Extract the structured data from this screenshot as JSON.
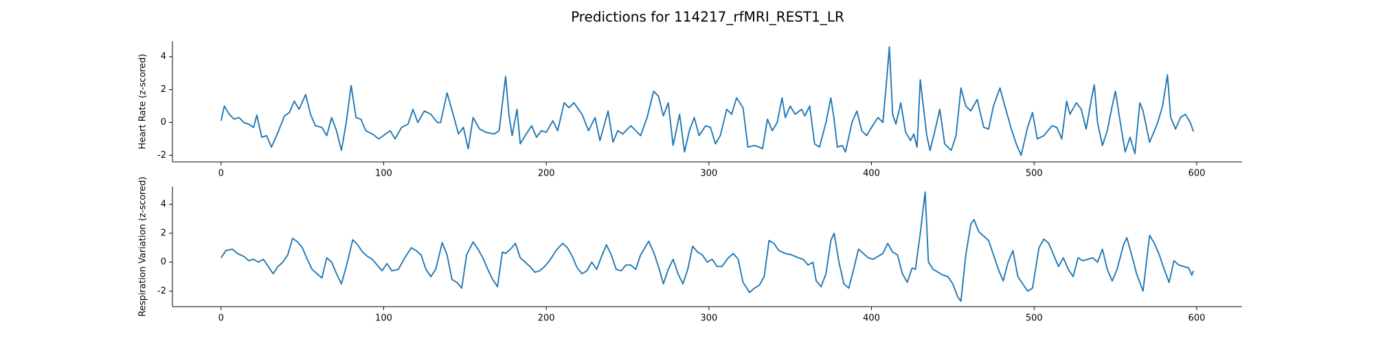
{
  "title": "Predictions for 114217_rfMRI_REST1_LR",
  "chart_data": [
    {
      "type": "line",
      "ylabel": "Heart Rate (z-scored)",
      "color": "#1f77b4",
      "xlim": [
        -29.9,
        627.9
      ],
      "ylim": [
        -2.4,
        4.95
      ],
      "xticks": [
        0,
        100,
        200,
        300,
        400,
        500,
        600
      ],
      "yticks": [
        -2,
        0,
        2,
        4
      ],
      "x": [
        0,
        2,
        5,
        8,
        11,
        14,
        17,
        20,
        22,
        25,
        28,
        31,
        35,
        39,
        42,
        45,
        48,
        52,
        55,
        58,
        62,
        65,
        68,
        71,
        74,
        77,
        80,
        83,
        86,
        89,
        93,
        97,
        104,
        107,
        111,
        115,
        118,
        121,
        125,
        129,
        133,
        135,
        139,
        143,
        146,
        149,
        152,
        155,
        159,
        163,
        168,
        171,
        175,
        177,
        179,
        182,
        184,
        187,
        191,
        194,
        197,
        200,
        204,
        207,
        211,
        214,
        217,
        222,
        226,
        230,
        233,
        238,
        241,
        244,
        247,
        252,
        255,
        258,
        262,
        266,
        269,
        272,
        275,
        278,
        282,
        285,
        288,
        291,
        294,
        298,
        301,
        304,
        307,
        311,
        314,
        317,
        321,
        324,
        328,
        331,
        333,
        336,
        339,
        342,
        345,
        347,
        350,
        353,
        357,
        359,
        362,
        365,
        368,
        372,
        375,
        377,
        379,
        382,
        384,
        388,
        391,
        394,
        397,
        400,
        404,
        407,
        409,
        411,
        413,
        415,
        418,
        421,
        424,
        426,
        428,
        430,
        434,
        436,
        439,
        442,
        445,
        449,
        452,
        455,
        458,
        461,
        465,
        469,
        472,
        475,
        479,
        482,
        486,
        489,
        492,
        496,
        499,
        502,
        506,
        511,
        514,
        517,
        520,
        522,
        526,
        529,
        532,
        535,
        537,
        539,
        542,
        545,
        548,
        550,
        553,
        556,
        559,
        562,
        565,
        567,
        571,
        574,
        576,
        579,
        582,
        584,
        587,
        590,
        593,
        596,
        598
      ],
      "values": [
        0.1,
        1.0,
        0.5,
        0.2,
        0.3,
        0.0,
        -0.1,
        -0.3,
        0.45,
        -0.9,
        -0.8,
        -1.5,
        -0.6,
        0.4,
        0.6,
        1.3,
        0.8,
        1.7,
        0.5,
        -0.2,
        -0.3,
        -0.8,
        0.3,
        -0.5,
        -1.7,
        0.0,
        2.25,
        0.3,
        0.2,
        -0.5,
        -0.7,
        -1.0,
        -0.5,
        -1.0,
        -0.3,
        -0.1,
        0.8,
        0.0,
        0.7,
        0.5,
        0.0,
        0.0,
        1.8,
        0.4,
        -0.7,
        -0.3,
        -1.6,
        0.3,
        -0.4,
        -0.6,
        -0.7,
        -0.5,
        2.8,
        0.5,
        -0.8,
        0.8,
        -1.3,
        -0.8,
        -0.2,
        -0.9,
        -0.5,
        -0.6,
        0.1,
        -0.5,
        1.2,
        0.9,
        1.2,
        0.5,
        -0.5,
        0.3,
        -1.1,
        0.7,
        -1.2,
        -0.5,
        -0.7,
        -0.2,
        -0.5,
        -0.8,
        0.3,
        1.9,
        1.6,
        0.4,
        1.2,
        -1.4,
        0.5,
        -1.8,
        -0.5,
        0.3,
        -0.8,
        -0.2,
        -0.3,
        -1.3,
        -0.8,
        0.8,
        0.5,
        1.5,
        0.9,
        -1.5,
        -1.4,
        -1.5,
        -1.6,
        0.2,
        -0.5,
        0.0,
        1.5,
        0.3,
        1.0,
        0.5,
        0.8,
        0.4,
        1.0,
        -1.3,
        -1.5,
        0.0,
        1.5,
        0.2,
        -1.5,
        -1.4,
        -1.8,
        0.0,
        0.7,
        -0.5,
        -0.8,
        -0.3,
        0.3,
        0.0,
        2.2,
        4.6,
        0.5,
        -0.1,
        1.2,
        -0.6,
        -1.1,
        -0.7,
        -1.5,
        2.6,
        -0.8,
        -1.7,
        -0.5,
        0.8,
        -1.3,
        -1.7,
        -0.8,
        2.1,
        1.0,
        0.7,
        1.4,
        -0.3,
        -0.4,
        1.0,
        2.1,
        1.0,
        -0.4,
        -1.3,
        -2.0,
        -0.3,
        0.6,
        -1.0,
        -0.8,
        -0.2,
        -0.3,
        -1.0,
        1.3,
        0.5,
        1.2,
        0.8,
        -0.4,
        1.3,
        2.3,
        0.0,
        -1.4,
        -0.5,
        1.0,
        1.9,
        0.0,
        -1.8,
        -0.9,
        -1.9,
        1.2,
        0.7,
        -1.2,
        -0.5,
        0.0,
        1.0,
        2.9,
        0.3,
        -0.4,
        0.3,
        0.5,
        0.0,
        -0.55
      ]
    },
    {
      "type": "line",
      "ylabel": "Respiration Variation (z-scored)",
      "color": "#1f77b4",
      "xlim": [
        -29.9,
        627.9
      ],
      "ylim": [
        -3.08,
        5.23
      ],
      "xticks": [
        0,
        100,
        200,
        300,
        400,
        500,
        600
      ],
      "yticks": [
        -2,
        0,
        2,
        4
      ],
      "x": [
        0,
        3,
        7,
        10,
        14,
        17,
        20,
        23,
        26,
        29,
        32,
        35,
        38,
        41,
        44,
        47,
        50,
        53,
        56,
        59,
        62,
        65,
        68,
        71,
        74,
        77,
        81,
        84,
        87,
        90,
        93,
        96,
        99,
        102,
        105,
        109,
        113,
        117,
        120,
        123,
        126,
        129,
        132,
        136,
        139,
        142,
        145,
        148,
        151,
        155,
        158,
        161,
        164,
        167,
        170,
        173,
        175,
        178,
        181,
        184,
        187,
        190,
        193,
        196,
        199,
        202,
        206,
        210,
        213,
        216,
        219,
        222,
        225,
        228,
        231,
        234,
        237,
        240,
        243,
        246,
        249,
        252,
        255,
        258,
        263,
        266,
        269,
        272,
        275,
        278,
        281,
        284,
        287,
        290,
        293,
        296,
        299,
        302,
        305,
        308,
        312,
        315,
        318,
        321,
        325,
        328,
        331,
        334,
        337,
        340,
        343,
        347,
        351,
        355,
        358,
        361,
        364,
        366,
        369,
        372,
        375,
        377,
        380,
        383,
        386,
        389,
        392,
        395,
        398,
        401,
        404,
        407,
        410,
        413,
        416,
        419,
        422,
        425,
        427,
        430,
        433,
        435,
        438,
        441,
        444,
        447,
        450,
        453,
        455,
        458,
        461,
        463,
        466,
        469,
        472,
        475,
        478,
        481,
        484,
        487,
        490,
        493,
        496,
        499,
        503,
        506,
        509,
        512,
        515,
        518,
        521,
        524,
        527,
        530,
        533,
        536,
        539,
        542,
        545,
        548,
        551,
        555,
        557,
        560,
        563,
        567,
        571,
        574,
        577,
        580,
        583,
        586,
        589,
        592,
        595,
        597,
        598
      ],
      "values": [
        0.3,
        0.8,
        0.9,
        0.6,
        0.4,
        0.1,
        0.2,
        0.0,
        0.2,
        -0.3,
        -0.8,
        -0.3,
        0.0,
        0.5,
        1.65,
        1.4,
        1.0,
        0.2,
        -0.5,
        -0.8,
        -1.1,
        0.3,
        0.0,
        -0.8,
        -1.5,
        -0.3,
        1.55,
        1.2,
        0.7,
        0.4,
        0.2,
        -0.2,
        -0.6,
        -0.1,
        -0.6,
        -0.5,
        0.3,
        1.0,
        0.8,
        0.5,
        -0.5,
        -1.0,
        -0.5,
        1.35,
        0.5,
        -1.2,
        -1.4,
        -1.8,
        0.5,
        1.4,
        0.9,
        0.3,
        -0.5,
        -1.2,
        -1.7,
        0.7,
        0.6,
        0.9,
        1.3,
        0.3,
        0.0,
        -0.3,
        -0.7,
        -0.6,
        -0.3,
        0.1,
        0.8,
        1.3,
        1.0,
        0.4,
        -0.4,
        -0.8,
        -0.6,
        0.0,
        -0.5,
        0.4,
        1.2,
        0.5,
        -0.5,
        -0.6,
        -0.2,
        -0.2,
        -0.5,
        0.5,
        1.45,
        0.7,
        -0.3,
        -1.5,
        -0.5,
        0.2,
        -0.8,
        -1.5,
        -0.5,
        1.1,
        0.7,
        0.5,
        0.0,
        0.2,
        -0.3,
        -0.3,
        0.3,
        0.6,
        0.2,
        -1.4,
        -2.1,
        -1.8,
        -1.6,
        -1.0,
        1.5,
        1.3,
        0.8,
        0.6,
        0.5,
        0.3,
        0.2,
        -0.2,
        0.0,
        -1.3,
        -1.7,
        -0.8,
        1.5,
        2.0,
        0.0,
        -1.5,
        -1.8,
        -0.5,
        0.9,
        0.6,
        0.3,
        0.2,
        0.4,
        0.6,
        1.3,
        0.7,
        0.5,
        -0.8,
        -1.4,
        -0.4,
        -0.5,
        2.0,
        4.85,
        0.0,
        -0.5,
        -0.7,
        -0.9,
        -1.0,
        -1.5,
        -2.4,
        -2.7,
        0.5,
        2.6,
        2.95,
        2.1,
        1.8,
        1.5,
        0.5,
        -0.5,
        -1.3,
        0.0,
        0.8,
        -1.0,
        -1.5,
        -2.0,
        -1.8,
        1.0,
        1.6,
        1.3,
        0.5,
        -0.3,
        0.3,
        -0.5,
        -1.0,
        0.3,
        0.1,
        0.2,
        0.3,
        0.0,
        0.9,
        -0.5,
        -1.3,
        -0.5,
        1.2,
        1.7,
        0.5,
        -0.8,
        -2.0,
        1.85,
        1.3,
        0.5,
        -0.5,
        -1.4,
        0.1,
        -0.2,
        -0.3,
        -0.4,
        -0.9,
        -0.6
      ]
    }
  ]
}
